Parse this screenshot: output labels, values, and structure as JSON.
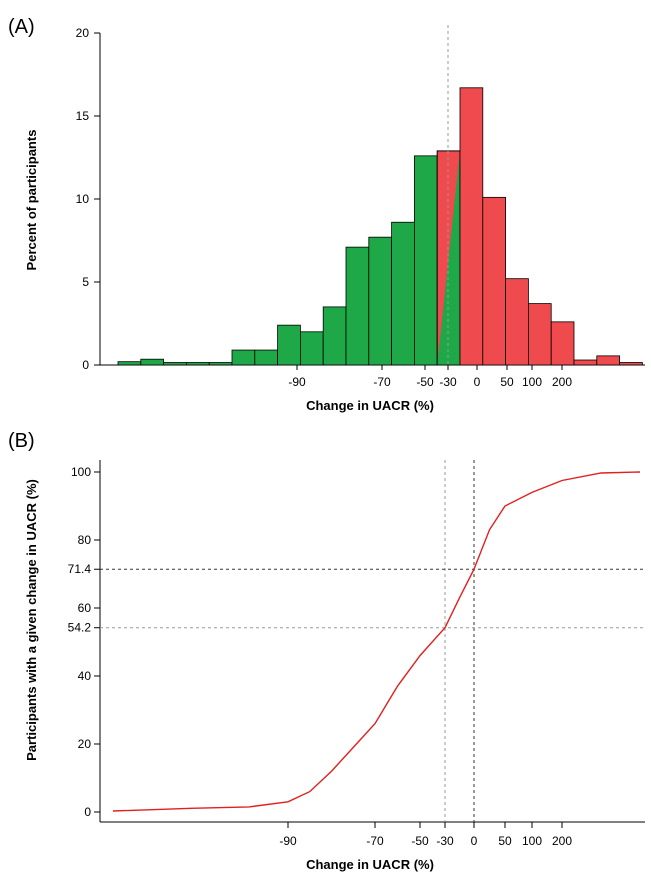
{
  "chart_data": [
    {
      "panel": "(A)",
      "type": "bar",
      "xlabel": "Change in UACR (%)",
      "ylabel": "Percent of participants",
      "ylim": [
        0,
        20
      ],
      "yticks": [
        0,
        5,
        10,
        15,
        20
      ],
      "xtick_labels": [
        "-90",
        "-70",
        "-50",
        "-30",
        "0",
        "50",
        "100",
        "200"
      ],
      "grid": false,
      "colors": {
        "decrease": "#1fa847",
        "increase": "#ef4a4e",
        "edge": "#000000",
        "reference": "#9a9a9a"
      },
      "reference_line": "-30",
      "bars": [
        {
          "value": 0.2,
          "color": "decrease"
        },
        {
          "value": 0.35,
          "color": "decrease"
        },
        {
          "value": 0.15,
          "color": "decrease"
        },
        {
          "value": 0.15,
          "color": "decrease"
        },
        {
          "value": 0.15,
          "color": "decrease"
        },
        {
          "value": 0.9,
          "color": "decrease"
        },
        {
          "value": 0.9,
          "color": "decrease"
        },
        {
          "value": 2.4,
          "color": "decrease"
        },
        {
          "value": 2.0,
          "color": "decrease"
        },
        {
          "value": 3.5,
          "color": "decrease"
        },
        {
          "value": 7.1,
          "color": "decrease"
        },
        {
          "value": 7.7,
          "color": "decrease"
        },
        {
          "value": 8.6,
          "color": "decrease"
        },
        {
          "value": 12.6,
          "color": "decrease"
        },
        {
          "value": 12.9,
          "color": "split"
        },
        {
          "value": 16.7,
          "color": "increase"
        },
        {
          "value": 10.1,
          "color": "increase"
        },
        {
          "value": 5.2,
          "color": "increase"
        },
        {
          "value": 3.7,
          "color": "increase"
        },
        {
          "value": 2.6,
          "color": "increase"
        },
        {
          "value": 0.3,
          "color": "increase"
        },
        {
          "value": 0.55,
          "color": "increase"
        },
        {
          "value": 0.15,
          "color": "increase"
        }
      ]
    },
    {
      "panel": "(B)",
      "type": "line",
      "xlabel": "Change in UACR (%)",
      "ylabel": "Participants with a given change in UACR (%)",
      "ylim": [
        0,
        100
      ],
      "ytick_labels": [
        "0",
        "20",
        "40",
        "54.2",
        "60",
        "71.4",
        "80",
        "100"
      ],
      "xtick_labels": [
        "-90",
        "-70",
        "-50",
        "-30",
        "0",
        "50",
        "100",
        "200"
      ],
      "grid": false,
      "line_color": "#e0201e",
      "reference_lines": [
        {
          "axis": "x",
          "at": "-30",
          "color": "#9a9a9a"
        },
        {
          "axis": "x",
          "at": "0",
          "color": "#333333"
        },
        {
          "axis": "y",
          "at": 54.2,
          "color": "#9a9a9a"
        },
        {
          "axis": "y",
          "at": 71.4,
          "color": "#333333"
        }
      ],
      "curve": [
        {
          "x": "-99",
          "y": 0.3
        },
        {
          "x": "-95",
          "y": 1.1
        },
        {
          "x": "-92",
          "y": 1.5
        },
        {
          "x": "-90",
          "y": 3.0
        },
        {
          "x": "-85",
          "y": 6.0
        },
        {
          "x": "-80",
          "y": 12.0
        },
        {
          "x": "-75",
          "y": 19.0
        },
        {
          "x": "-70",
          "y": 26.0
        },
        {
          "x": "-60",
          "y": 37.0
        },
        {
          "x": "-50",
          "y": 46.0
        },
        {
          "x": "-30",
          "y": 54.2
        },
        {
          "x": "-15",
          "y": 63.0
        },
        {
          "x": "0",
          "y": 71.4
        },
        {
          "x": "25",
          "y": 83.0
        },
        {
          "x": "50",
          "y": 90.0
        },
        {
          "x": "100",
          "y": 94.0
        },
        {
          "x": "200",
          "y": 97.5
        },
        {
          "x": "400",
          "y": 99.7
        },
        {
          "x": "600",
          "y": 100.0
        }
      ]
    }
  ]
}
